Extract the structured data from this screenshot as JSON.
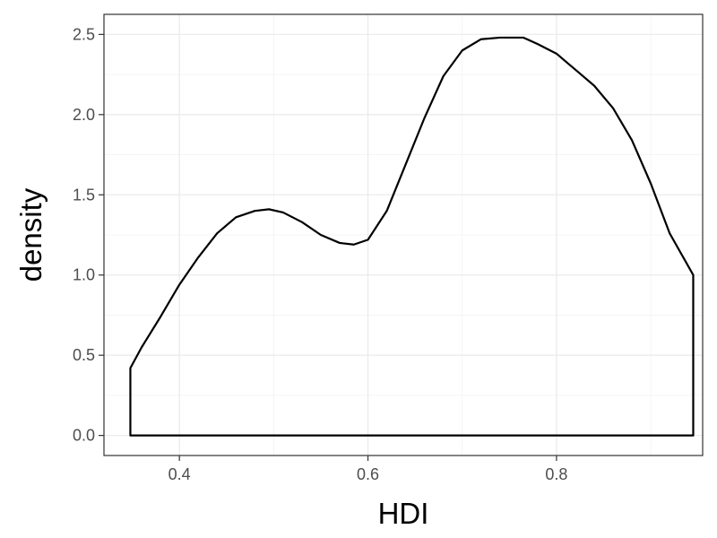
{
  "chart_data": {
    "type": "area",
    "theme": "bw",
    "grid": true,
    "xlabel": "HDI",
    "ylabel": "density",
    "xlim": [
      0.32,
      0.955
    ],
    "ylim": [
      -0.125,
      2.625
    ],
    "x_ticks": [
      0.4,
      0.6,
      0.8
    ],
    "x_tick_labels": [
      "0.4",
      "0.6",
      "0.8"
    ],
    "y_ticks": [
      0.0,
      0.5,
      1.0,
      1.5,
      2.0,
      2.5
    ],
    "y_tick_labels": [
      "0.0",
      "0.5",
      "1.0",
      "1.5",
      "2.0",
      "2.5"
    ],
    "series": [
      {
        "x": [
          0.348,
          0.36,
          0.38,
          0.4,
          0.42,
          0.44,
          0.46,
          0.48,
          0.495,
          0.51,
          0.53,
          0.55,
          0.57,
          0.585,
          0.6,
          0.62,
          0.64,
          0.66,
          0.68,
          0.7,
          0.72,
          0.74,
          0.765,
          0.78,
          0.8,
          0.82,
          0.84,
          0.86,
          0.88,
          0.9,
          0.92,
          0.945
        ],
        "y": [
          0.42,
          0.55,
          0.74,
          0.94,
          1.11,
          1.26,
          1.36,
          1.4,
          1.41,
          1.39,
          1.33,
          1.25,
          1.2,
          1.19,
          1.22,
          1.4,
          1.69,
          1.98,
          2.24,
          2.4,
          2.47,
          2.48,
          2.48,
          2.44,
          2.38,
          2.28,
          2.18,
          2.04,
          1.84,
          1.57,
          1.26,
          1.0
        ]
      }
    ]
  }
}
